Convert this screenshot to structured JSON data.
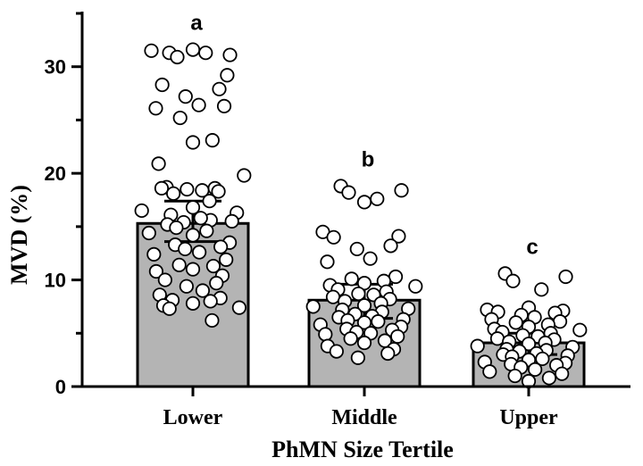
{
  "chart_data": {
    "type": "bar",
    "xlabel": "PhMN Size Tertile",
    "ylabel": "MVD (%)",
    "ylim": [
      0,
      35
    ],
    "yticks": [
      0,
      10,
      20,
      30
    ],
    "grid": false,
    "bar_color": "#b4b4b4",
    "categories": [
      "Lower",
      "Middle",
      "Upper"
    ],
    "values": [
      15.3,
      8.1,
      4.1
    ],
    "error_low": [
      13.6,
      6.4,
      3.0
    ],
    "error_high": [
      17.4,
      9.6,
      5.0
    ],
    "significance_labels": [
      "a",
      "b",
      "c"
    ],
    "points": [
      [
        31.3,
        31.1,
        30.9,
        31.3,
        31.6,
        31.5,
        29.2,
        28.3,
        27.9,
        27.2,
        26.4,
        26.1,
        26.3,
        25.2,
        23.1,
        22.9,
        20.9,
        19.8,
        18.7,
        18.6,
        18.5,
        18.4,
        18.6,
        18.3,
        18.1,
        17.4,
        16.8,
        16.5,
        16.3,
        16.1,
        15.6,
        15.4,
        15.8,
        15.2,
        15.5,
        14.9,
        14.6,
        14.2,
        14.4,
        13.5,
        13.3,
        13.1,
        12.9,
        12.6,
        12.4,
        11.9,
        11.4,
        11.3,
        11.0,
        10.8,
        10.4,
        10.0,
        9.7,
        9.4,
        9.0,
        8.6,
        8.3,
        8.1,
        8.0,
        7.8,
        7.6,
        7.4,
        7.3,
        6.2
      ],
      [
        18.8,
        18.4,
        18.2,
        17.6,
        17.3,
        14.5,
        14.1,
        14.0,
        13.2,
        12.9,
        12.0,
        11.7,
        10.3,
        10.1,
        9.9,
        9.7,
        9.5,
        9.4,
        9.1,
        8.9,
        8.7,
        8.6,
        8.4,
        8.2,
        8.0,
        7.8,
        7.6,
        7.5,
        7.3,
        7.2,
        7.0,
        6.8,
        6.6,
        6.5,
        6.3,
        6.2,
        6.1,
        6.0,
        5.8,
        5.6,
        5.4,
        5.3,
        5.1,
        5.0,
        4.9,
        4.7,
        4.5,
        4.3,
        4.1,
        3.8,
        3.5,
        3.3,
        3.1,
        2.7
      ],
      [
        10.6,
        10.3,
        9.9,
        9.1,
        7.4,
        7.2,
        7.1,
        7.0,
        6.9,
        6.7,
        6.5,
        6.3,
        6.1,
        6.0,
        5.8,
        5.6,
        5.4,
        5.3,
        5.1,
        5.0,
        4.8,
        4.7,
        4.5,
        4.4,
        4.2,
        4.1,
        4.0,
        3.8,
        3.7,
        3.5,
        3.4,
        3.3,
        3.1,
        3.0,
        2.9,
        2.8,
        2.6,
        2.5,
        2.3,
        2.2,
        2.1,
        2.0,
        1.8,
        1.6,
        1.4,
        1.2,
        1.0,
        0.8,
        0.5
      ]
    ]
  }
}
